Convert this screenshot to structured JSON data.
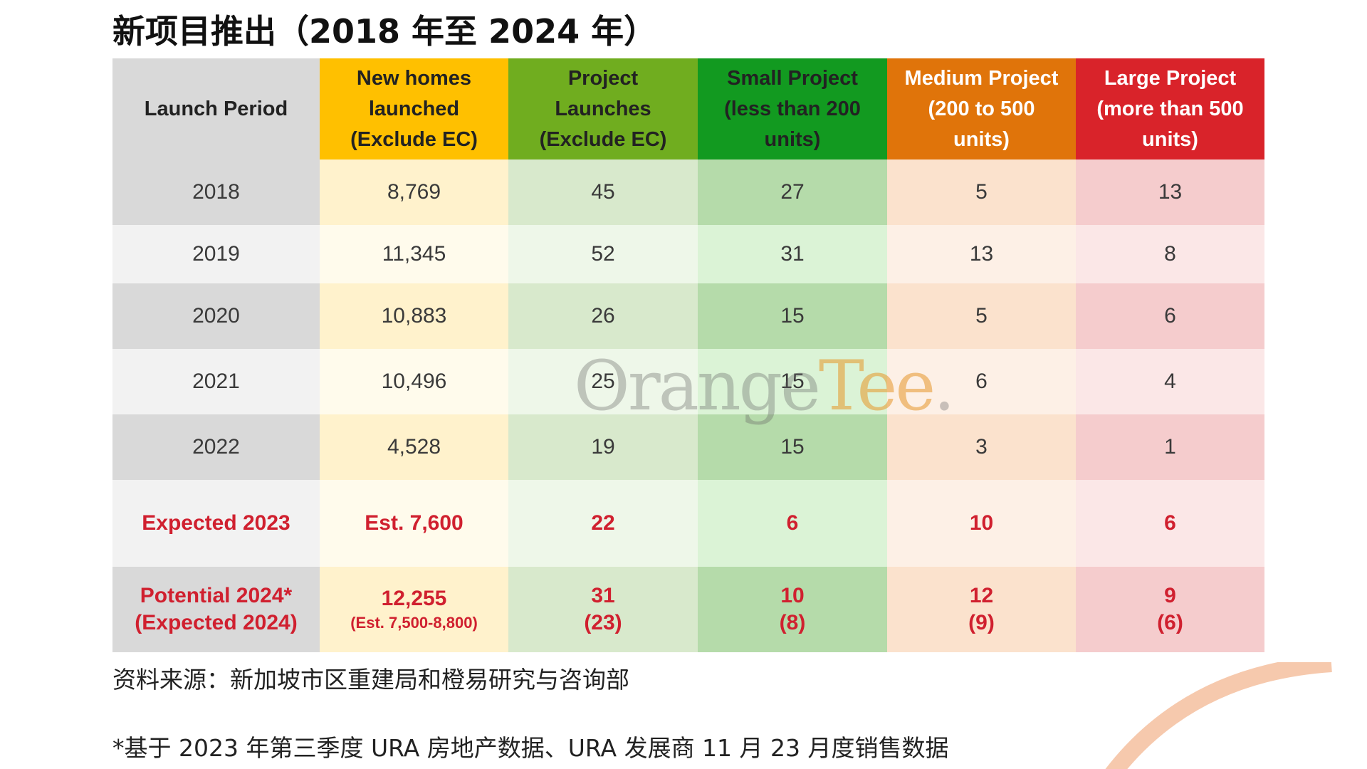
{
  "title": "新项目推出（2018 年至 2024 年）",
  "table": {
    "headers": [
      {
        "lines": [
          "Launch Period"
        ],
        "bg": "#d9d9d9",
        "color": "#222222"
      },
      {
        "lines": [
          "New homes",
          "launched",
          "(Exclude EC)"
        ],
        "bg": "#ffc000",
        "color": "#222222"
      },
      {
        "lines": [
          "Project",
          "Launches",
          "(Exclude EC)"
        ],
        "bg": "#70ad1f",
        "color": "#222222"
      },
      {
        "lines": [
          "Small Project",
          "(less than 200",
          "units)"
        ],
        "bg": "#129a20",
        "color": "#222222"
      },
      {
        "lines": [
          "Medium Project",
          "(200 to 500",
          "units)"
        ],
        "bg": "#e0740a",
        "color": "#ffffff"
      },
      {
        "lines": [
          "Large Project",
          "(more than 500",
          "units)"
        ],
        "bg": "#d9232a",
        "color": "#ffffff"
      }
    ],
    "rows": [
      {
        "cells": [
          {
            "main": "2018"
          },
          {
            "main": "8,769"
          },
          {
            "main": "45"
          },
          {
            "main": "27"
          },
          {
            "main": "5"
          },
          {
            "main": "13"
          }
        ]
      },
      {
        "cells": [
          {
            "main": "2019"
          },
          {
            "main": "11,345"
          },
          {
            "main": "52"
          },
          {
            "main": "31"
          },
          {
            "main": "13"
          },
          {
            "main": "8"
          }
        ]
      },
      {
        "cells": [
          {
            "main": "2020"
          },
          {
            "main": "10,883"
          },
          {
            "main": "26"
          },
          {
            "main": "15"
          },
          {
            "main": "5"
          },
          {
            "main": "6"
          }
        ]
      },
      {
        "cells": [
          {
            "main": "2021"
          },
          {
            "main": "10,496"
          },
          {
            "main": "25"
          },
          {
            "main": "15"
          },
          {
            "main": "6"
          },
          {
            "main": "4"
          }
        ]
      },
      {
        "cells": [
          {
            "main": "2022"
          },
          {
            "main": "4,528"
          },
          {
            "main": "19"
          },
          {
            "main": "15"
          },
          {
            "main": "3"
          },
          {
            "main": "1"
          }
        ]
      },
      {
        "highlight": true,
        "cells": [
          {
            "main": "Expected 2023"
          },
          {
            "main": "Est. 7,600"
          },
          {
            "main": "22"
          },
          {
            "main": "6"
          },
          {
            "main": "10"
          },
          {
            "main": "6"
          }
        ]
      },
      {
        "highlight": true,
        "cells": [
          {
            "main": "Potential 2024*",
            "second": "(Expected 2024)"
          },
          {
            "main": "12,255",
            "sub": "(Est. 7,500-8,800)"
          },
          {
            "main": "31",
            "second": "(23)"
          },
          {
            "main": "10",
            "second": "(8)"
          },
          {
            "main": "12",
            "second": "(9)"
          },
          {
            "main": "9",
            "second": "(6)"
          }
        ]
      }
    ],
    "band_colors": {
      "dark": [
        "#d9d9d9",
        "#fff2cc",
        "#d8e9cc",
        "#b5dbaa",
        "#fbe2cd",
        "#f5cccd"
      ],
      "light": [
        "#f2f2f2",
        "#fffbec",
        "#eef7e9",
        "#dbf3d6",
        "#fdf0e6",
        "#fbe7e7"
      ]
    }
  },
  "watermark": {
    "part1": "Orange",
    "part2": "Tee",
    "mark": "."
  },
  "source": "资料来源：新加坡市区重建局和橙易研究与咨询部",
  "footnote": "*基于 2023 年第三季度 URA 房地产数据、URA 发展商 11 月 23 月度销售数据"
}
